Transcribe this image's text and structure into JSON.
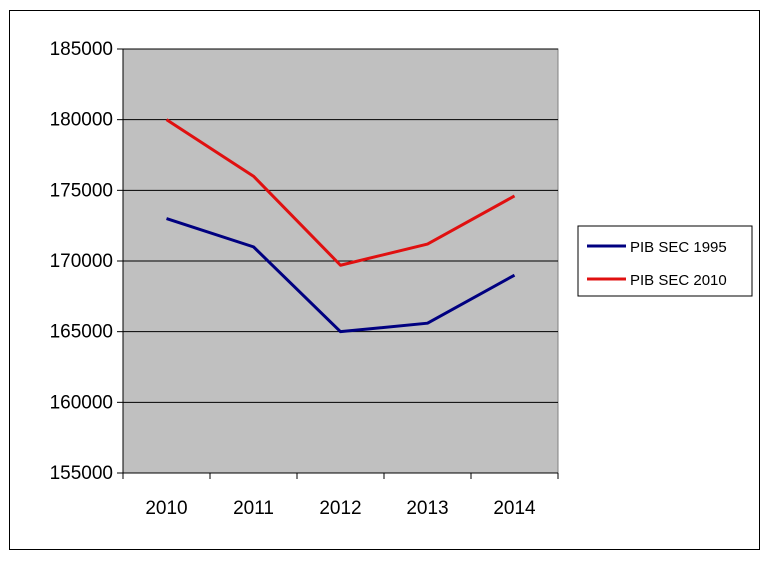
{
  "chart_data": {
    "type": "line",
    "title": "",
    "xlabel": "",
    "ylabel": "",
    "categories": [
      "2010",
      "2011",
      "2012",
      "2013",
      "2014"
    ],
    "ylim": [
      155000,
      185000
    ],
    "yticks": [
      "155000",
      "160000",
      "165000",
      "170000",
      "175000",
      "180000",
      "185000"
    ],
    "grid": true,
    "plot_background": "#c0c0c0",
    "legend_position": "right",
    "series": [
      {
        "name": "PIB SEC 1995",
        "color": "#000080",
        "values": [
          173000,
          171000,
          165000,
          165600,
          169000
        ]
      },
      {
        "name": "PIB SEC 2010",
        "color": "#e01010",
        "values": [
          180000,
          176000,
          169700,
          171200,
          174600
        ]
      }
    ]
  }
}
